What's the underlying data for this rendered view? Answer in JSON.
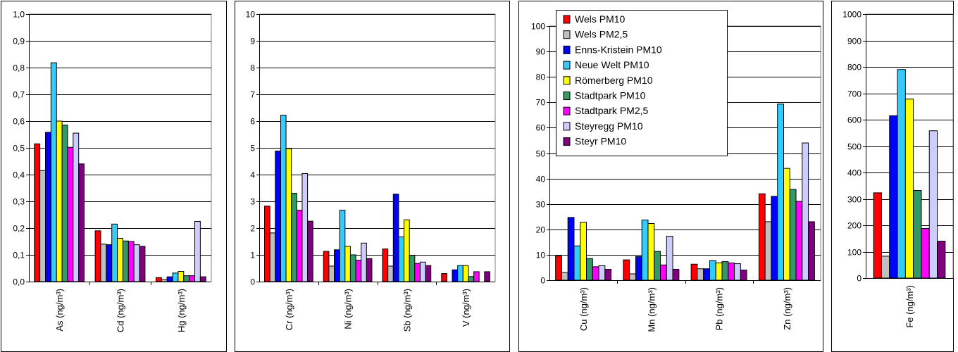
{
  "series_colors": [
    "#ff0000",
    "#c0c0c0",
    "#0000ff",
    "#33ccff",
    "#ffff00",
    "#339966",
    "#ff00ff",
    "#ccccff",
    "#800080"
  ],
  "legend": {
    "entries": [
      "Wels PM10",
      "Wels PM2,5",
      "Enns-Kristein PM10",
      "Neue Welt PM10",
      "Römerberg PM10",
      "Stadtpark PM10",
      "Stadtpark PM2,5",
      "Steyregg PM10",
      "Steyr PM10"
    ]
  },
  "chart_data": [
    {
      "type": "bar",
      "categories": [
        "As (ng/m³)",
        "Cd (ng/m³)",
        "Hg (ng/m³)"
      ],
      "ylim": [
        0,
        1
      ],
      "yticks": [
        "0,0",
        "0,1",
        "0,2",
        "0,3",
        "0,4",
        "0,5",
        "0,6",
        "0,7",
        "0,8",
        "0,9",
        "1,0"
      ],
      "grid": true,
      "series": [
        {
          "values": [
            0.515,
            0.19,
            0.015
          ]
        },
        {
          "values": [
            0.415,
            0.14,
            0.008
          ]
        },
        {
          "values": [
            0.558,
            0.138,
            0.018
          ]
        },
        {
          "values": [
            0.818,
            0.215,
            0.032
          ]
        },
        {
          "values": [
            0.6,
            0.162,
            0.038
          ]
        },
        {
          "values": [
            0.585,
            0.152,
            0.022
          ]
        },
        {
          "values": [
            0.502,
            0.15,
            0.022
          ]
        },
        {
          "values": [
            0.555,
            0.138,
            0.225
          ]
        },
        {
          "values": [
            0.44,
            0.132,
            0.018
          ]
        }
      ]
    },
    {
      "type": "bar",
      "categories": [
        "Cr (ng/m³)",
        "Ni (ng/m³)",
        "Sb (ng/m³)",
        "V  (ng/m³)"
      ],
      "ylim": [
        0,
        10
      ],
      "yticks": [
        "0",
        "1",
        "2",
        "3",
        "4",
        "5",
        "6",
        "7",
        "8",
        "9",
        "10"
      ],
      "grid": true,
      "series": [
        {
          "values": [
            2.82,
            1.13,
            1.22,
            0.3
          ]
        },
        {
          "values": [
            1.82,
            0.58,
            0.58,
            0
          ]
        },
        {
          "values": [
            4.88,
            1.19,
            3.27,
            0.44
          ]
        },
        {
          "values": [
            6.22,
            2.67,
            1.67,
            0.6
          ]
        },
        {
          "values": [
            4.97,
            1.32,
            2.31,
            0.6
          ]
        },
        {
          "values": [
            3.3,
            1.0,
            0.98,
            0.19
          ]
        },
        {
          "values": [
            2.67,
            0.8,
            0.68,
            0.37
          ]
        },
        {
          "values": [
            4.04,
            1.44,
            0.73,
            0
          ]
        },
        {
          "values": [
            2.26,
            0.86,
            0.6,
            0.37
          ]
        }
      ]
    },
    {
      "type": "bar",
      "categories": [
        "Cu (ng/m³)",
        "Mn (ng/m³)",
        "Pb (ng/m³)",
        "Zn (ng/m³)"
      ],
      "ylim": [
        0,
        100
      ],
      "yticks": [
        "0",
        "10",
        "20",
        "30",
        "40",
        "50",
        "60",
        "70",
        "80",
        "90",
        "100"
      ],
      "grid": true,
      "legend_position": "top-left",
      "series": [
        {
          "values": [
            9.5,
            8.0,
            6.3,
            34.0
          ]
        },
        {
          "values": [
            3.0,
            2.5,
            4.5,
            23.0
          ]
        },
        {
          "values": [
            24.7,
            9.3,
            4.5,
            33.0
          ]
        },
        {
          "values": [
            13.5,
            23.7,
            7.7,
            69.3
          ]
        },
        {
          "values": [
            22.8,
            22.3,
            6.8,
            44.0
          ]
        },
        {
          "values": [
            8.5,
            11.3,
            7.3,
            35.7
          ]
        },
        {
          "values": [
            5.3,
            6.0,
            6.8,
            31.0
          ]
        },
        {
          "values": [
            5.7,
            17.3,
            6.5,
            54.0
          ]
        },
        {
          "values": [
            4.3,
            4.3,
            4.0,
            23.0
          ]
        }
      ]
    },
    {
      "type": "bar",
      "categories": [
        "Fe (ng/m³)"
      ],
      "ylim": [
        0,
        1000
      ],
      "yticks": [
        "0",
        "100",
        "200",
        "300",
        "400",
        "500",
        "600",
        "700",
        "800",
        "900",
        "1000"
      ],
      "grid": true,
      "series": [
        {
          "values": [
            323
          ]
        },
        {
          "values": [
            83
          ]
        },
        {
          "values": [
            615
          ]
        },
        {
          "values": [
            790
          ]
        },
        {
          "values": [
            678
          ]
        },
        {
          "values": [
            332
          ]
        },
        {
          "values": [
            188
          ]
        },
        {
          "values": [
            558
          ]
        },
        {
          "values": [
            140
          ]
        }
      ]
    }
  ]
}
